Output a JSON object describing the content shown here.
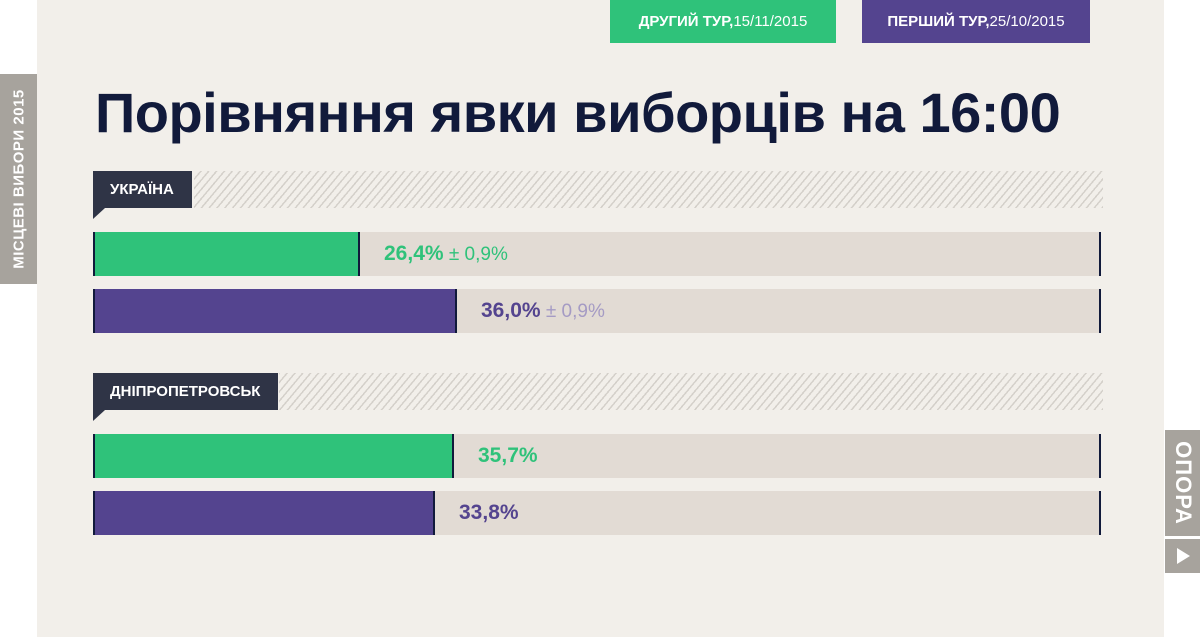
{
  "side_tag": "МІСЦЕВІ ВИБОРИ 2015",
  "legend": {
    "second_round": {
      "label": "ДРУГИЙ ТУР,",
      "date": " 15/11/2015",
      "color": "#2fc27a"
    },
    "first_round": {
      "label": "ПЕРШИЙ ТУР,",
      "date": " 25/10/2015",
      "color": "#54448f"
    }
  },
  "title": "Порівняння явки виборців на 16:00",
  "logo": {
    "text": "ОПОРА",
    "icon": "play-triangle-icon"
  },
  "chart_data": {
    "type": "bar",
    "orientation": "horizontal",
    "title": "Порівняння явки виборців на 16:00",
    "xlim": [
      0,
      100
    ],
    "series": [
      {
        "name": "ДРУГИЙ ТУР, 15/11/2015",
        "color": "#2fc27a"
      },
      {
        "name": "ПЕРШИЙ ТУР, 25/10/2015",
        "color": "#54448f"
      }
    ],
    "groups": [
      {
        "label": "УКРАЇНА",
        "bars": [
          {
            "series": 0,
            "value": 26.4,
            "value_label": "26,4%",
            "error_label": " ± 0,9%"
          },
          {
            "series": 1,
            "value": 36.0,
            "value_label": "36,0%",
            "error_label": " ± 0,9%"
          }
        ]
      },
      {
        "label": "ДНІПРОПЕТРОВСЬК",
        "bars": [
          {
            "series": 0,
            "value": 35.7,
            "value_label": "35,7%",
            "error_label": ""
          },
          {
            "series": 1,
            "value": 33.8,
            "value_label": "33,8%",
            "error_label": ""
          }
        ]
      }
    ]
  }
}
